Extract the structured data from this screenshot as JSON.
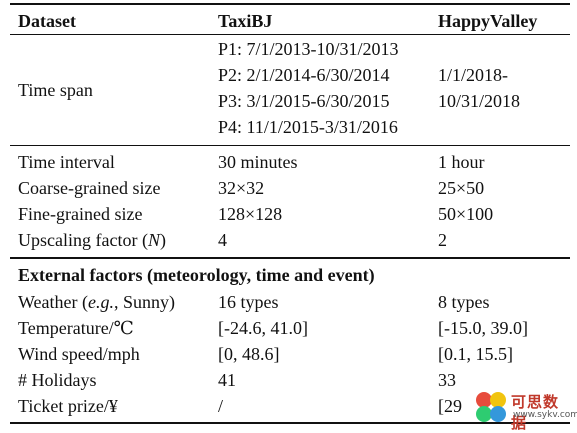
{
  "header": {
    "col1": "Dataset",
    "col2": "TaxiBJ",
    "col3": "HappyValley"
  },
  "time_span": {
    "label": "Time span",
    "taxibj": [
      "P1: 7/1/2013-10/31/2013",
      "P2: 2/1/2014-6/30/2014",
      "P3: 3/1/2015-6/30/2015",
      "P4: 11/1/2015-3/31/2016"
    ],
    "happyvalley": [
      "1/1/2018-",
      "10/31/2018"
    ]
  },
  "rows_basic": [
    {
      "label": "Time interval",
      "taxibj": "30 minutes",
      "happyvalley": "1 hour"
    },
    {
      "label": "Coarse-grained size",
      "taxibj": "32×32",
      "happyvalley": "25×50"
    },
    {
      "label": "Fine-grained size",
      "taxibj": "128×128",
      "happyvalley": "50×100"
    },
    {
      "label_prefix": "Upscaling factor (",
      "label_italic": "N",
      "label_suffix": ")",
      "taxibj": "4",
      "happyvalley": "2"
    }
  ],
  "external_heading": "External factors (meteorology, time and event)",
  "rows_external": [
    {
      "label_prefix": "Weather (",
      "label_italic": "e.g.",
      "label_suffix": ", Sunny)",
      "taxibj": "16 types",
      "happyvalley": "8 types"
    },
    {
      "label": "Temperature/℃",
      "taxibj": "[-24.6, 41.0]",
      "happyvalley": "[-15.0, 39.0]"
    },
    {
      "label": "Wind speed/mph",
      "taxibj": "[0, 48.6]",
      "happyvalley": "[0.1, 15.5]"
    },
    {
      "label": "# Holidays",
      "taxibj": "41",
      "happyvalley": "33"
    },
    {
      "label": "Ticket prize/¥",
      "taxibj": "/",
      "happyvalley": "[29"
    }
  ],
  "watermark": {
    "text": "可思数据",
    "sub": "www.sykv.com",
    "colors": [
      "#e74c3c",
      "#f1c40f",
      "#2ecc71",
      "#3498db"
    ]
  }
}
